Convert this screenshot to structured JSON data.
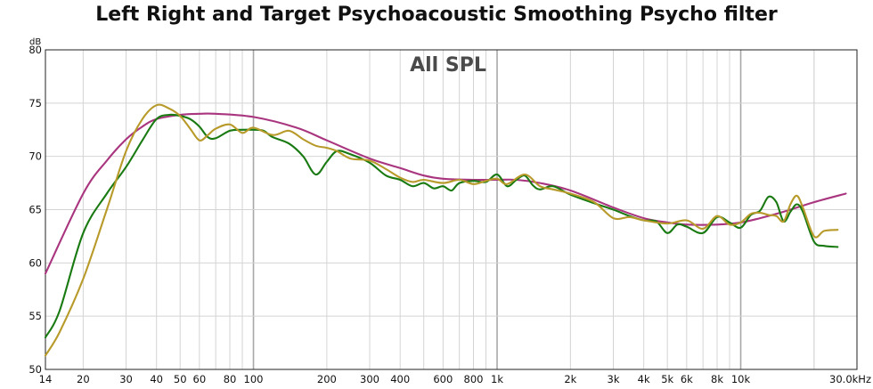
{
  "chart_data": {
    "type": "line",
    "title": "Left Right and Target Psychoacoustic Smoothing Psycho filter",
    "plot_label": "All SPL",
    "y_unit": "dB",
    "x_scale": "log",
    "xlim": [
      14,
      30000
    ],
    "ylim": [
      50,
      80
    ],
    "grid": true,
    "x_ticks": [
      {
        "value": 14,
        "label": "14"
      },
      {
        "value": 20,
        "label": "20"
      },
      {
        "value": 30,
        "label": "30"
      },
      {
        "value": 40,
        "label": "40"
      },
      {
        "value": 50,
        "label": "50"
      },
      {
        "value": 60,
        "label": "60"
      },
      {
        "value": 80,
        "label": "80"
      },
      {
        "value": 100,
        "label": "100"
      },
      {
        "value": 200,
        "label": "200"
      },
      {
        "value": 300,
        "label": "300"
      },
      {
        "value": 400,
        "label": "400"
      },
      {
        "value": 600,
        "label": "600"
      },
      {
        "value": 800,
        "label": "800"
      },
      {
        "value": 1000,
        "label": "1k"
      },
      {
        "value": 2000,
        "label": "2k"
      },
      {
        "value": 3000,
        "label": "3k"
      },
      {
        "value": 4000,
        "label": "4k"
      },
      {
        "value": 5000,
        "label": "5k"
      },
      {
        "value": 6000,
        "label": "6k"
      },
      {
        "value": 8000,
        "label": "8k"
      },
      {
        "value": 10000,
        "label": "10k"
      },
      {
        "value": 30000,
        "label": "30.0kHz"
      }
    ],
    "y_ticks": [
      50,
      55,
      60,
      65,
      70,
      75,
      80
    ],
    "series": [
      {
        "color": "#a9357f",
        "points": [
          [
            14,
            59.0
          ],
          [
            20,
            66.5
          ],
          [
            25,
            69.6
          ],
          [
            30,
            71.6
          ],
          [
            35,
            72.8
          ],
          [
            40,
            73.5
          ],
          [
            50,
            73.9
          ],
          [
            60,
            74.0
          ],
          [
            70,
            74.0
          ],
          [
            100,
            73.7
          ],
          [
            150,
            72.7
          ],
          [
            200,
            71.5
          ],
          [
            300,
            69.8
          ],
          [
            400,
            68.9
          ],
          [
            500,
            68.2
          ],
          [
            600,
            67.9
          ],
          [
            800,
            67.8
          ],
          [
            1000,
            67.8
          ],
          [
            1200,
            67.8
          ],
          [
            1500,
            67.5
          ],
          [
            2000,
            66.8
          ],
          [
            3000,
            65.2
          ],
          [
            4000,
            64.2
          ],
          [
            5000,
            63.8
          ],
          [
            6000,
            63.6
          ],
          [
            8000,
            63.6
          ],
          [
            10000,
            63.8
          ],
          [
            12000,
            64.2
          ],
          [
            15000,
            64.8
          ],
          [
            20000,
            65.7
          ],
          [
            27000,
            66.5
          ]
        ]
      },
      {
        "color": "#1a7a12",
        "points": [
          [
            14,
            53.0
          ],
          [
            16,
            55.5
          ],
          [
            20,
            62.8
          ],
          [
            25,
            66.5
          ],
          [
            30,
            69.0
          ],
          [
            35,
            71.5
          ],
          [
            40,
            73.5
          ],
          [
            45,
            73.9
          ],
          [
            50,
            73.8
          ],
          [
            55,
            73.5
          ],
          [
            60,
            72.8
          ],
          [
            65,
            71.8
          ],
          [
            70,
            71.7
          ],
          [
            80,
            72.4
          ],
          [
            90,
            72.5
          ],
          [
            100,
            72.5
          ],
          [
            110,
            72.4
          ],
          [
            120,
            71.8
          ],
          [
            140,
            71.2
          ],
          [
            160,
            70.0
          ],
          [
            180,
            68.3
          ],
          [
            200,
            69.5
          ],
          [
            220,
            70.5
          ],
          [
            250,
            70.2
          ],
          [
            300,
            69.4
          ],
          [
            350,
            68.2
          ],
          [
            400,
            67.8
          ],
          [
            450,
            67.2
          ],
          [
            500,
            67.5
          ],
          [
            550,
            67.0
          ],
          [
            600,
            67.2
          ],
          [
            650,
            66.8
          ],
          [
            700,
            67.5
          ],
          [
            800,
            67.7
          ],
          [
            900,
            67.6
          ],
          [
            1000,
            68.3
          ],
          [
            1100,
            67.2
          ],
          [
            1200,
            67.8
          ],
          [
            1300,
            68.2
          ],
          [
            1400,
            67.3
          ],
          [
            1500,
            66.9
          ],
          [
            1700,
            67.2
          ],
          [
            2000,
            66.4
          ],
          [
            2500,
            65.6
          ],
          [
            3000,
            65.0
          ],
          [
            3500,
            64.4
          ],
          [
            4000,
            64.0
          ],
          [
            4500,
            63.9
          ],
          [
            5000,
            62.8
          ],
          [
            5500,
            63.6
          ],
          [
            6000,
            63.4
          ],
          [
            7000,
            62.8
          ],
          [
            8000,
            64.3
          ],
          [
            9000,
            63.8
          ],
          [
            10000,
            63.3
          ],
          [
            11000,
            64.5
          ],
          [
            12000,
            64.9
          ],
          [
            13000,
            66.2
          ],
          [
            14000,
            65.7
          ],
          [
            15000,
            63.9
          ],
          [
            16000,
            64.8
          ],
          [
            17000,
            65.5
          ],
          [
            18000,
            64.8
          ],
          [
            20000,
            62.0
          ],
          [
            22000,
            61.6
          ],
          [
            25000,
            61.5
          ]
        ]
      },
      {
        "color": "#b89a2a",
        "points": [
          [
            14,
            51.3
          ],
          [
            16,
            53.5
          ],
          [
            20,
            58.5
          ],
          [
            25,
            65.0
          ],
          [
            30,
            70.5
          ],
          [
            35,
            73.5
          ],
          [
            40,
            74.8
          ],
          [
            45,
            74.5
          ],
          [
            50,
            73.8
          ],
          [
            55,
            72.6
          ],
          [
            60,
            71.5
          ],
          [
            65,
            72.0
          ],
          [
            70,
            72.6
          ],
          [
            80,
            73.0
          ],
          [
            90,
            72.2
          ],
          [
            100,
            72.7
          ],
          [
            120,
            72.0
          ],
          [
            140,
            72.4
          ],
          [
            160,
            71.6
          ],
          [
            180,
            71.0
          ],
          [
            200,
            70.8
          ],
          [
            220,
            70.5
          ],
          [
            250,
            69.8
          ],
          [
            300,
            69.6
          ],
          [
            350,
            68.8
          ],
          [
            400,
            68.0
          ],
          [
            450,
            67.6
          ],
          [
            500,
            67.8
          ],
          [
            600,
            67.5
          ],
          [
            700,
            67.8
          ],
          [
            800,
            67.4
          ],
          [
            900,
            67.7
          ],
          [
            1000,
            67.9
          ],
          [
            1100,
            67.4
          ],
          [
            1300,
            68.3
          ],
          [
            1500,
            67.2
          ],
          [
            1700,
            66.9
          ],
          [
            2000,
            66.5
          ],
          [
            2500,
            65.7
          ],
          [
            3000,
            64.2
          ],
          [
            3500,
            64.3
          ],
          [
            4000,
            64.0
          ],
          [
            5000,
            63.7
          ],
          [
            6000,
            64.0
          ],
          [
            7000,
            63.2
          ],
          [
            8000,
            64.4
          ],
          [
            9000,
            63.6
          ],
          [
            10000,
            63.8
          ],
          [
            11000,
            64.6
          ],
          [
            12000,
            64.7
          ],
          [
            13000,
            64.5
          ],
          [
            14000,
            64.4
          ],
          [
            15000,
            63.9
          ],
          [
            16000,
            65.5
          ],
          [
            17000,
            66.3
          ],
          [
            18000,
            65.2
          ],
          [
            20000,
            62.5
          ],
          [
            22000,
            63.0
          ],
          [
            25000,
            63.1
          ]
        ]
      }
    ]
  }
}
